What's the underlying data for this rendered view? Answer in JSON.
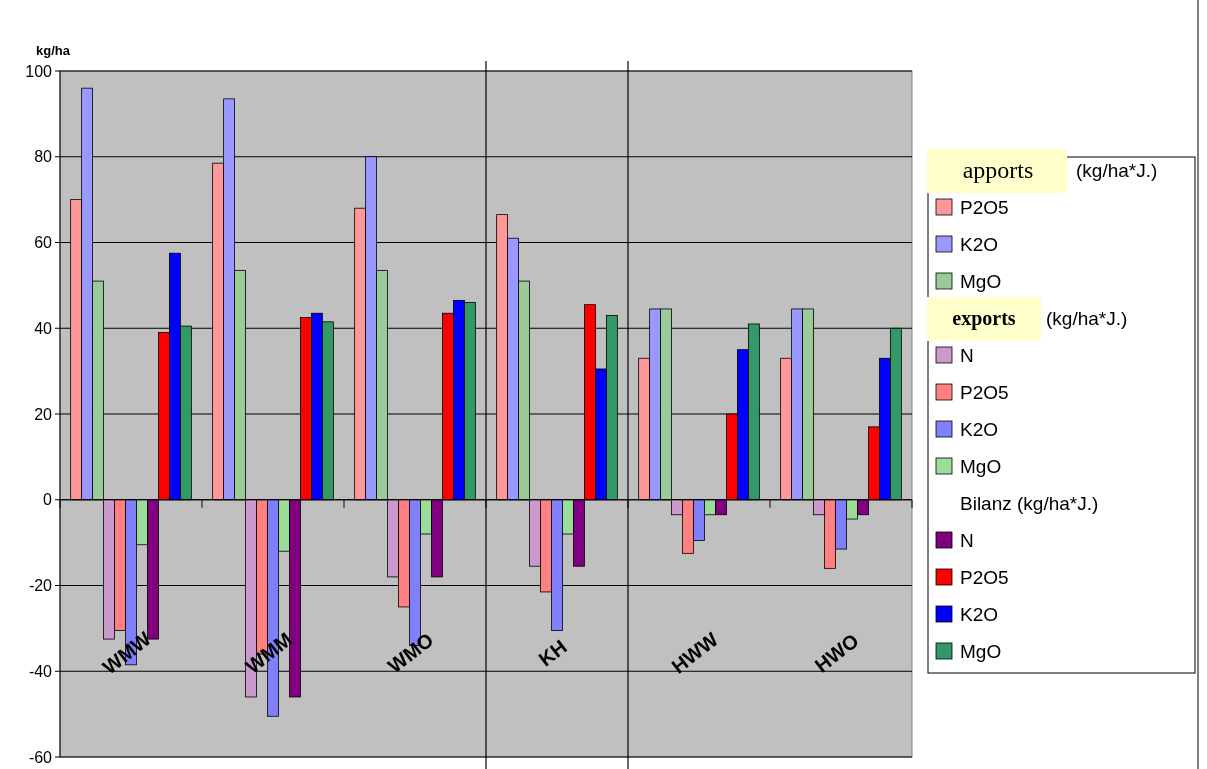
{
  "chart_data": {
    "type": "bar",
    "ylabel": "kg/ha",
    "categories": [
      "WMW",
      "WMM",
      "WMO",
      "KH",
      "HWW",
      "HWO"
    ],
    "series": [
      {
        "name": "P2O5",
        "color": "#ff9999",
        "values": [
          70,
          78.5,
          68,
          66.5,
          33,
          33
        ]
      },
      {
        "name": "K2O",
        "color": "#9999ff",
        "values": [
          96,
          93.5,
          80,
          61,
          44.5,
          44.5
        ]
      },
      {
        "name": "MgO",
        "color": "#99cc99",
        "values": [
          51,
          53.5,
          53.5,
          51,
          44.5,
          44.5
        ]
      },
      {
        "name": "N",
        "color": "#cc99cc",
        "values": [
          -32.5,
          -46,
          -18,
          -15.5,
          -3.5,
          -3.5
        ]
      },
      {
        "name": "P2O5",
        "color": "#ff8080",
        "values": [
          -30.5,
          -36,
          -25,
          -21.5,
          -12.5,
          -16
        ]
      },
      {
        "name": "K2O",
        "color": "#8080ff",
        "values": [
          -38.5,
          -50.5,
          -34,
          -30.5,
          -9.5,
          -11.5
        ]
      },
      {
        "name": "MgO",
        "color": "#99dd99",
        "values": [
          -10.5,
          -12,
          -8,
          -8,
          -3.5,
          -4.5
        ]
      },
      {
        "name": "N",
        "color": "#800080",
        "values": [
          -32.5,
          -46,
          -18,
          -15.5,
          -3.5,
          -3.5
        ]
      },
      {
        "name": "P2O5",
        "color": "#ff0000",
        "values": [
          39,
          42.5,
          43.5,
          45.5,
          20,
          17
        ]
      },
      {
        "name": "K2O",
        "color": "#0000ff",
        "values": [
          57.5,
          43.5,
          46.5,
          30.5,
          35,
          33
        ]
      },
      {
        "name": "MgO",
        "color": "#339966",
        "values": [
          40.5,
          41.5,
          46,
          43,
          41,
          40
        ]
      }
    ],
    "annotations": [
      "apports",
      "(kg/ha*J.)",
      "exports",
      "(kg/ha*J.)",
      "Bilanz (kg/ha*J.)"
    ],
    "ylim": [
      -60,
      100
    ],
    "yticks": [
      -60,
      -40,
      -20,
      0,
      20,
      40,
      60,
      80,
      100
    ],
    "grid": "y",
    "legend": "right"
  }
}
